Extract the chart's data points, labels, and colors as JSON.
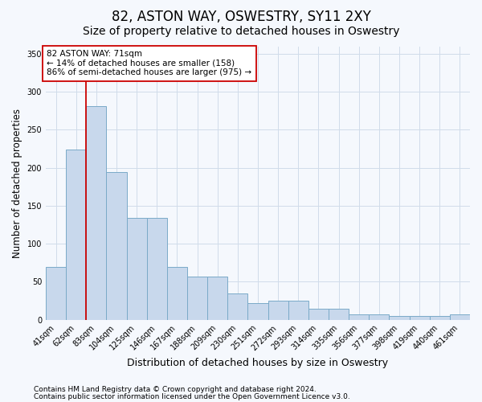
{
  "title": "82, ASTON WAY, OSWESTRY, SY11 2XY",
  "subtitle": "Size of property relative to detached houses in Oswestry",
  "xlabel": "Distribution of detached houses by size in Oswestry",
  "ylabel": "Number of detached properties",
  "categories": [
    "41sqm",
    "62sqm",
    "83sqm",
    "104sqm",
    "125sqm",
    "146sqm",
    "167sqm",
    "188sqm",
    "209sqm",
    "230sqm",
    "251sqm",
    "272sqm",
    "293sqm",
    "314sqm",
    "335sqm",
    "356sqm",
    "377sqm",
    "398sqm",
    "419sqm",
    "440sqm",
    "461sqm"
  ],
  "values": [
    69,
    224,
    281,
    194,
    134,
    134,
    70,
    57,
    57,
    35,
    22,
    25,
    25,
    14,
    14,
    7,
    7,
    5,
    5,
    5,
    7
  ],
  "bar_color": "#c8d8ec",
  "bar_edge_color": "#7aaac8",
  "bar_edge_width": 0.7,
  "property_line_color": "#cc0000",
  "annotation_text": "82 ASTON WAY: 71sqm\n← 14% of detached houses are smaller (158)\n86% of semi-detached houses are larger (975) →",
  "annotation_box_color": "#ffffff",
  "annotation_box_edge": "#cc0000",
  "ylim": [
    0,
    360
  ],
  "yticks": [
    0,
    50,
    100,
    150,
    200,
    250,
    300,
    350
  ],
  "grid_color": "#d0dcea",
  "footer_line1": "Contains HM Land Registry data © Crown copyright and database right 2024.",
  "footer_line2": "Contains public sector information licensed under the Open Government Licence v3.0.",
  "bg_color": "#f5f8fd",
  "plot_bg_color": "#f5f8fd",
  "title_fontsize": 12,
  "subtitle_fontsize": 10,
  "axis_label_fontsize": 8.5,
  "tick_fontsize": 7,
  "annotation_fontsize": 7.5,
  "footer_fontsize": 6.5
}
